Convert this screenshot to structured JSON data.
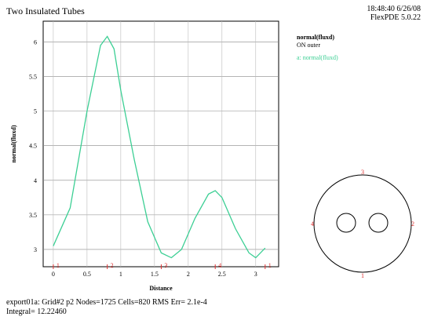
{
  "header": {
    "title": "Two Insulated Tubes",
    "timestamp": "18:48:40 6/26/08",
    "version": "FlexPDE 5.0.22"
  },
  "legend_header": {
    "variable": "normal(fluxd)",
    "location": "ON outer"
  },
  "chart_data": {
    "type": "line",
    "x_label": "Distance",
    "y_label": "normal(fluxd)",
    "x": [
      0,
      0.25,
      0.5,
      0.7,
      0.8,
      0.9,
      1.0,
      1.2,
      1.4,
      1.6,
      1.75,
      1.9,
      2.1,
      2.3,
      2.4,
      2.5,
      2.7,
      2.9,
      3.0,
      3.14
    ],
    "series": [
      {
        "name": "a: normal(fluxd)",
        "color": "#3ccf94",
        "values": [
          3.05,
          3.6,
          5.0,
          5.95,
          6.08,
          5.9,
          5.3,
          4.3,
          3.4,
          2.95,
          2.88,
          3.0,
          3.45,
          3.8,
          3.85,
          3.75,
          3.3,
          2.95,
          2.88,
          3.02
        ]
      }
    ],
    "xlim": [
      -0.15,
      3.34
    ],
    "ylim": [
      2.75,
      6.3
    ],
    "xticks": [
      0,
      0.5,
      1,
      1.5,
      2,
      2.5,
      3
    ],
    "yticks": [
      3,
      3.5,
      4,
      4.5,
      5,
      5.5,
      6
    ],
    "grid": true,
    "point_labels": {
      "x": [
        0,
        0.8,
        1.6,
        2.4,
        3.14
      ],
      "labels": [
        "1",
        "2",
        "3",
        "4",
        "1"
      ],
      "color": "#e03030"
    }
  },
  "diagram": {
    "labels": [
      "3",
      "2",
      "1",
      "4"
    ]
  },
  "footer": {
    "stats": "export01a:  Grid#2  p2  Nodes=1725 Cells=820 RMS Err= 2.1e-4",
    "integral": "Integral=  12.22460"
  }
}
